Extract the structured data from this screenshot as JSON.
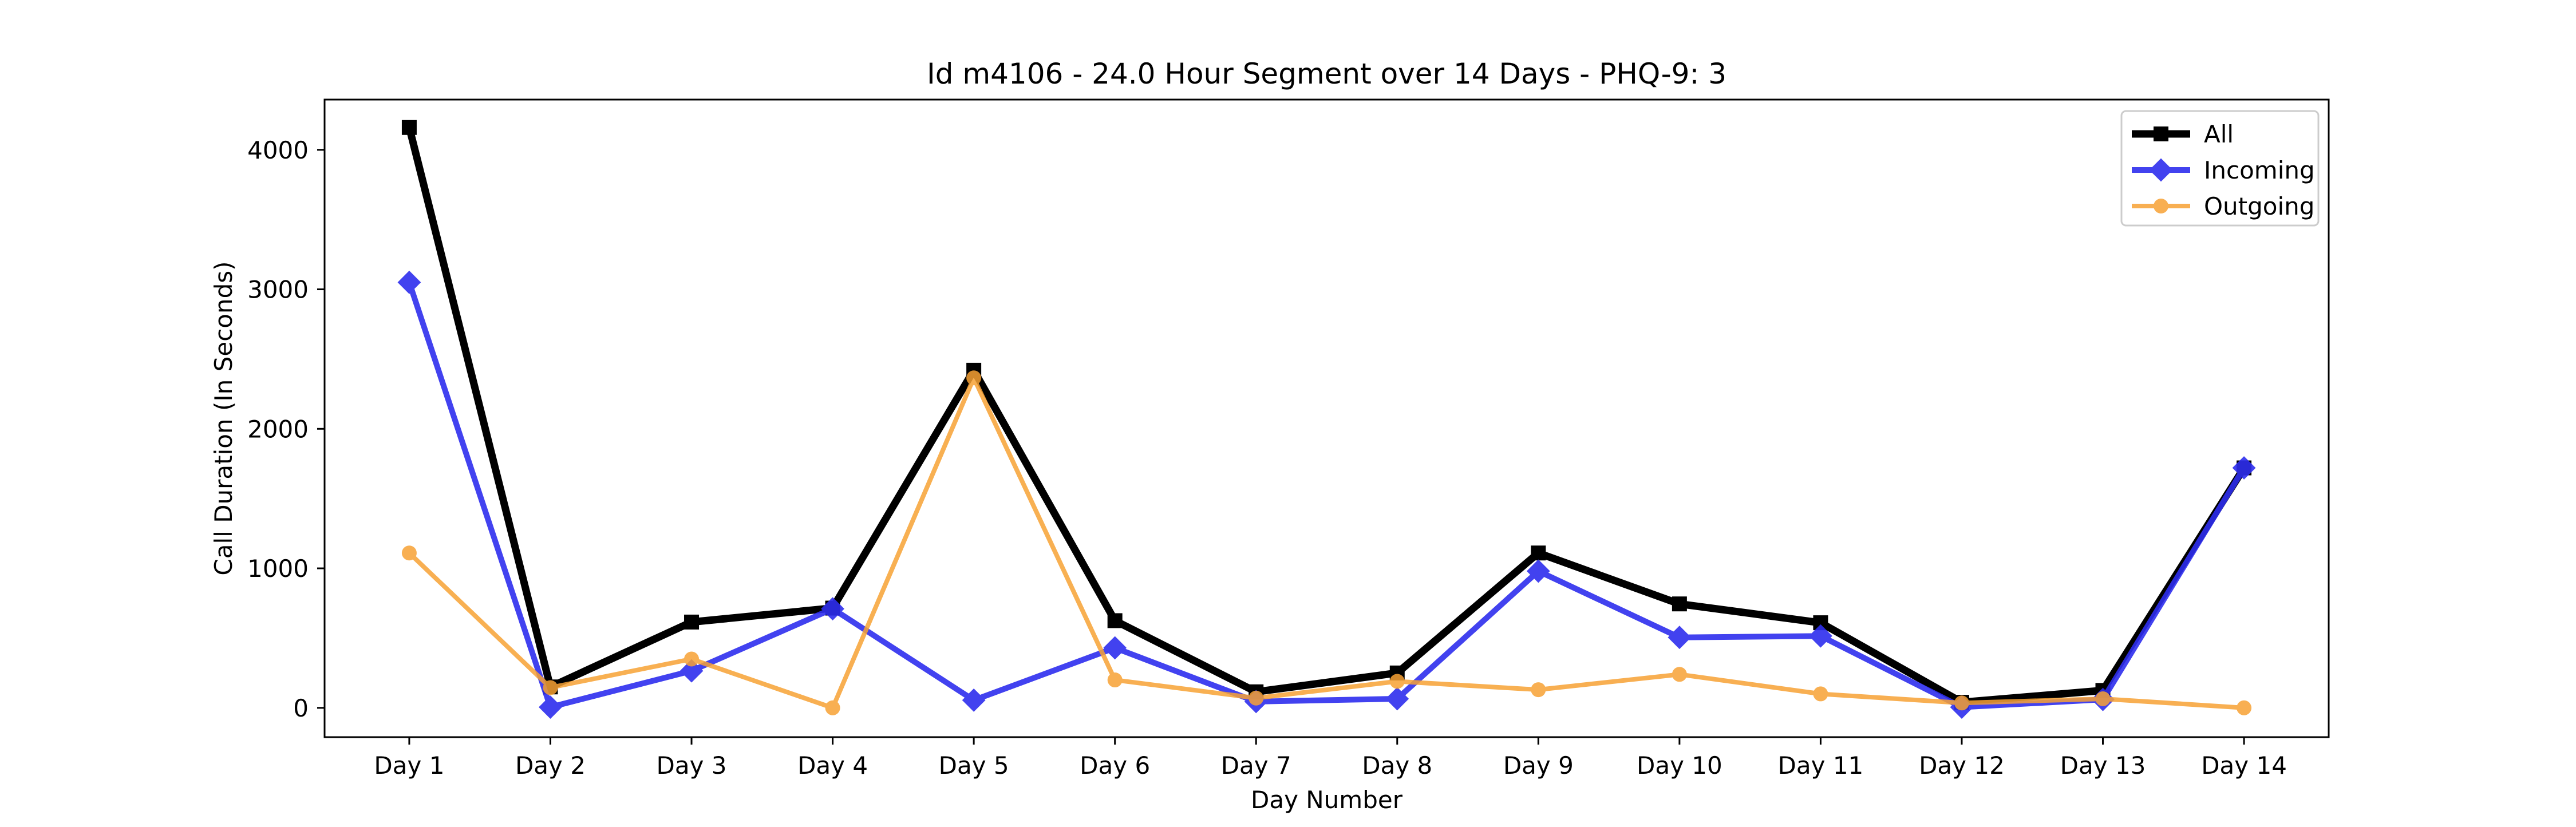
{
  "chart_data": {
    "type": "line",
    "title": "Id m4106 - 24.0 Hour Segment over 14 Days - PHQ-9: 3",
    "xlabel": "Day Number",
    "ylabel": "Call Duration (In Seconds)",
    "categories": [
      "Day 1",
      "Day 2",
      "Day 3",
      "Day 4",
      "Day 5",
      "Day 6",
      "Day 7",
      "Day 8",
      "Day 9",
      "Day 10",
      "Day 11",
      "Day 12",
      "Day 13",
      "Day 14"
    ],
    "ylim": [
      -210,
      4360
    ],
    "yticks": [
      0,
      1000,
      2000,
      3000,
      4000
    ],
    "grid": false,
    "legend_position": "top-right",
    "series": [
      {
        "name": "All",
        "color": "#000000",
        "marker": "square",
        "values": [
          4160,
          150,
          615,
          715,
          2420,
          625,
          115,
          250,
          1110,
          745,
          610,
          40,
          125,
          1720
        ]
      },
      {
        "name": "Incoming",
        "color": "#2e2eee",
        "marker": "diamond",
        "values": [
          3050,
          5,
          265,
          710,
          55,
          430,
          45,
          65,
          980,
          505,
          515,
          5,
          60,
          1720
        ]
      },
      {
        "name": "Outgoing",
        "color": "#f7a234",
        "marker": "circle",
        "values": [
          1110,
          145,
          350,
          0,
          2365,
          200,
          70,
          190,
          130,
          240,
          100,
          35,
          65,
          0
        ]
      }
    ]
  }
}
